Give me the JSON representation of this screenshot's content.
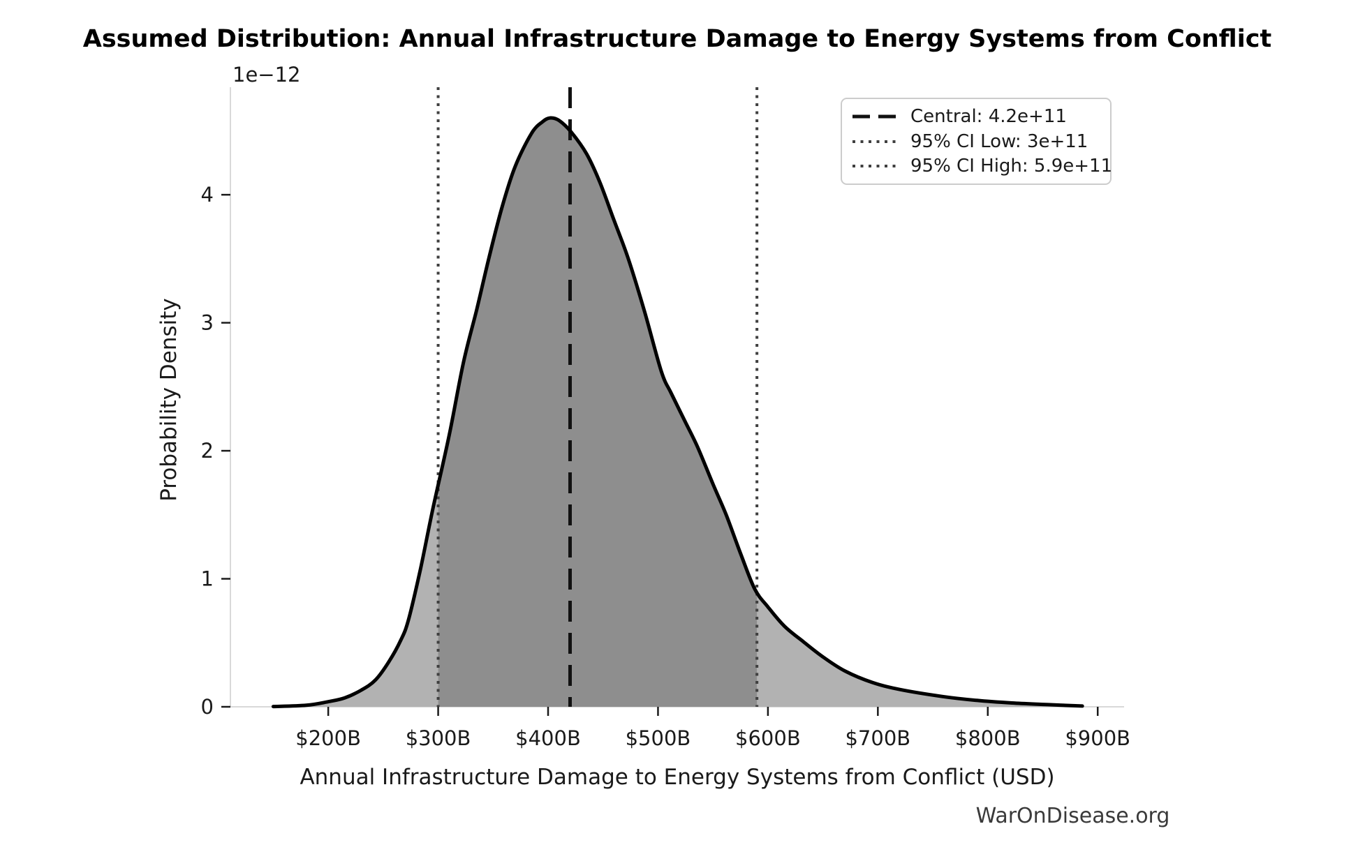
{
  "chart_data": {
    "type": "area",
    "title": "Assumed Distribution: Annual Infrastructure Damage to Energy Systems from Conflict",
    "xlabel": "Annual Infrastructure Damage to Energy Systems from Conflict (USD)",
    "ylabel": "Probability Density",
    "y_offset_label": "1e−12",
    "watermark": "WarOnDisease.org",
    "xlim_billions": [
      111,
      924
    ],
    "ylim_1e12": [
      0,
      4.84
    ],
    "grid": false,
    "legend_position": "upper right",
    "x_ticks": [
      {
        "value": 200,
        "label": "$200B"
      },
      {
        "value": 300,
        "label": "$300B"
      },
      {
        "value": 400,
        "label": "$400B"
      },
      {
        "value": 500,
        "label": "$500B"
      },
      {
        "value": 600,
        "label": "$600B"
      },
      {
        "value": 700,
        "label": "$700B"
      },
      {
        "value": 800,
        "label": "$800B"
      },
      {
        "value": 900,
        "label": "$900B"
      }
    ],
    "y_ticks": [
      {
        "value": 0,
        "label": "0"
      },
      {
        "value": 1,
        "label": "1"
      },
      {
        "value": 2,
        "label": "2"
      },
      {
        "value": 3,
        "label": "3"
      },
      {
        "value": 4,
        "label": "4"
      }
    ],
    "curve": {
      "x_billions": [
        150,
        180,
        200,
        215,
        230,
        243,
        255,
        266,
        273,
        284,
        295,
        310,
        323,
        335,
        346,
        358,
        370,
        385,
        395,
        402,
        410,
        421,
        435,
        447,
        460,
        473,
        488,
        503,
        512,
        524,
        536,
        550,
        562,
        575,
        588,
        600,
        615,
        632,
        650,
        670,
        695,
        720,
        759,
        790,
        822,
        855,
        886
      ],
      "density_1e12": [
        0.002,
        0.012,
        0.04,
        0.07,
        0.13,
        0.21,
        0.35,
        0.52,
        0.68,
        1.08,
        1.54,
        2.12,
        2.69,
        3.1,
        3.5,
        3.9,
        4.22,
        4.48,
        4.57,
        4.6,
        4.58,
        4.49,
        4.32,
        4.1,
        3.8,
        3.5,
        3.08,
        2.62,
        2.45,
        2.24,
        2.03,
        1.74,
        1.5,
        1.2,
        0.92,
        0.78,
        0.63,
        0.51,
        0.39,
        0.28,
        0.19,
        0.135,
        0.08,
        0.05,
        0.03,
        0.017,
        0.006
      ]
    },
    "vlines": [
      {
        "name": "central",
        "value_billions": 420,
        "style": "dashed",
        "legend_label": "Central: 4.2e+11"
      },
      {
        "name": "ci_low",
        "value_billions": 300,
        "style": "dotted",
        "legend_label": "95% CI Low: 3e+11"
      },
      {
        "name": "ci_high",
        "value_billions": 590,
        "style": "dotted",
        "legend_label": "95% CI High: 5.9e+11"
      }
    ],
    "ci_shaded_range_billions": [
      300,
      590
    ],
    "colors": {
      "curve": "#000000",
      "fill_light": "#b2b2b2",
      "fill_dark": "#8e8e8e",
      "spine": "#d9d9d9",
      "tick": "#1a1a1a",
      "dashed_line": "#111111",
      "dotted_line": "#3f3f3f",
      "legend_border": "#cccccc",
      "watermark": "#3a3a3a"
    }
  }
}
